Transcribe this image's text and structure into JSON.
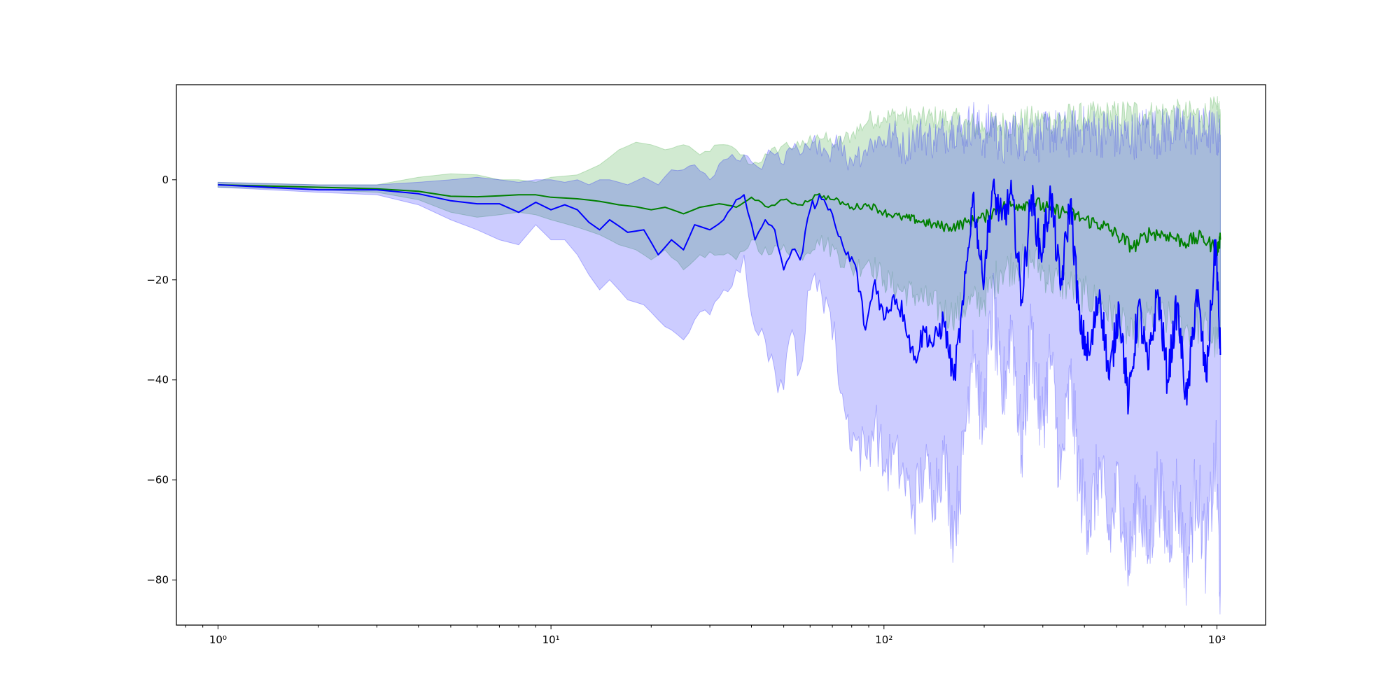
{
  "chart_data": {
    "type": "line",
    "title": "",
    "xlabel": "",
    "ylabel": "",
    "xscale": "log",
    "xlim": [
      0.75,
      1400
    ],
    "ylim": [
      -89,
      19
    ],
    "grid": false,
    "legend": "none",
    "xticks": [
      {
        "value": 1,
        "label": "10⁰"
      },
      {
        "value": 10,
        "label": "10¹"
      },
      {
        "value": 100,
        "label": "10²"
      },
      {
        "value": 1000,
        "label": "10³"
      }
    ],
    "yticks": [
      {
        "value": 0,
        "label": "0"
      },
      {
        "value": -20,
        "label": "−20"
      },
      {
        "value": -40,
        "label": "−40"
      },
      {
        "value": -60,
        "label": "−60"
      },
      {
        "value": -80,
        "label": "−80"
      }
    ],
    "series": [
      {
        "color": "#008000",
        "band_color": "#2ca02c",
        "band_opacity": 0.22,
        "x": [
          1,
          2,
          3,
          4,
          5,
          6,
          7,
          8,
          9,
          10,
          12,
          14,
          16,
          18,
          20,
          22,
          25,
          28,
          32,
          36,
          40,
          45,
          50,
          56,
          63,
          71,
          80,
          90,
          100,
          112,
          125,
          140,
          158,
          178,
          200,
          224,
          250,
          280,
          316,
          355,
          400,
          450,
          500,
          560,
          630,
          710,
          800,
          900,
          1000,
          1024
        ],
        "mean": [
          -1,
          -1.5,
          -1.8,
          -2.3,
          -3.3,
          -3.4,
          -3.2,
          -3.0,
          -3.0,
          -3.5,
          -3.8,
          -4.3,
          -5.0,
          -5.4,
          -6.0,
          -5.5,
          -6.8,
          -5.5,
          -4.8,
          -5.5,
          -3.5,
          -5.5,
          -4.0,
          -5.0,
          -3.0,
          -4.0,
          -5.5,
          -5.0,
          -6.5,
          -7.5,
          -8.0,
          -9.0,
          -9.5,
          -8.5,
          -7.5,
          -5.5,
          -5.0,
          -4.5,
          -6.0,
          -6.5,
          -8.0,
          -9.0,
          -11.0,
          -13.5,
          -10.5,
          -11.0,
          -12.5,
          -11.5,
          -14.0,
          -12.0
        ],
        "upper": [
          -0.5,
          -1.0,
          -1.0,
          0.5,
          1.2,
          1.0,
          0.0,
          0.0,
          -0.5,
          0.5,
          1.0,
          3.0,
          6.0,
          7.5,
          7.0,
          6.0,
          7.0,
          5.0,
          7.0,
          6.0,
          3.0,
          5.0,
          7.0,
          6.5,
          9.0,
          7.0,
          9.0,
          12.0,
          12.5,
          13.0,
          12.0,
          12.5,
          12.0,
          11.0,
          10.5,
          11.0,
          11.5,
          12.0,
          12.0,
          12.5,
          12.5,
          13.0,
          13.0,
          13.5,
          13.0,
          13.5,
          13.0,
          13.0,
          14.0,
          13.0
        ],
        "lower": [
          -1.5,
          -2.0,
          -2.5,
          -4.0,
          -6.5,
          -7.5,
          -7.0,
          -6.5,
          -7.0,
          -8.0,
          -9.5,
          -11.0,
          -13.0,
          -14.0,
          -16.0,
          -14.0,
          -18.0,
          -15.0,
          -15.0,
          -16.0,
          -12.0,
          -15.0,
          -13.0,
          -15.0,
          -12.0,
          -14.0,
          -18.0,
          -16.0,
          -20.0,
          -22.0,
          -23.0,
          -25.0,
          -27.0,
          -25.0,
          -24.0,
          -18.0,
          -17.0,
          -16.0,
          -20.0,
          -21.0,
          -23.0,
          -25.0,
          -28.0,
          -32.0,
          -27.0,
          -28.0,
          -30.0,
          -29.0,
          -33.0,
          -30.0
        ]
      },
      {
        "color": "#0000ff",
        "band_color": "#0000ff",
        "band_opacity": 0.2,
        "x": [
          1,
          2,
          3,
          4,
          5,
          6,
          7,
          8,
          9,
          10,
          11,
          12,
          13,
          14,
          15,
          17,
          19,
          21,
          23,
          25,
          27,
          30,
          33,
          36,
          38,
          41,
          44,
          47,
          50,
          53,
          56,
          60,
          64,
          68,
          72,
          77,
          82,
          88,
          94,
          100,
          107,
          115,
          123,
          132,
          141,
          151,
          162,
          173,
          185,
          198,
          212,
          226,
          242,
          259,
          277,
          296,
          317,
          339,
          363,
          388,
          415,
          444,
          475,
          508,
          543,
          581,
          621,
          664,
          710,
          759,
          812,
          868,
          928,
          992,
          1024
        ],
        "mean": [
          -1,
          -2,
          -2,
          -2.8,
          -4.2,
          -4.8,
          -4.8,
          -6.5,
          -4.5,
          -6,
          -5.0,
          -6,
          -8.5,
          -10,
          -8,
          -10.5,
          -10,
          -15,
          -12,
          -14,
          -9,
          -10,
          -8,
          -4,
          -3,
          -12,
          -8,
          -10,
          -18,
          -14,
          -16,
          -6,
          -3,
          -6,
          -10,
          -15,
          -17,
          -30,
          -20,
          -28,
          -23,
          -27,
          -36,
          -30,
          -33,
          -28,
          -40,
          -25,
          -3,
          -20,
          -2,
          -8,
          -3,
          -24,
          -3,
          -15,
          -3,
          -22,
          -4,
          -30,
          -35,
          -22,
          -40,
          -25,
          -45,
          -25,
          -38,
          -22,
          -40,
          -25,
          -45,
          -22,
          -40,
          -12,
          -35
        ],
        "upper": [
          -0.5,
          -1,
          -1,
          -0.5,
          0,
          0.5,
          0,
          -0.5,
          0,
          0,
          -0.5,
          0,
          -1,
          0,
          0,
          -1,
          0.5,
          -1,
          2,
          2,
          3,
          0,
          4,
          4,
          5,
          3,
          4,
          5,
          3,
          6,
          5,
          6,
          8,
          5,
          9,
          4,
          5,
          6,
          8,
          8,
          9,
          6,
          9,
          9,
          8,
          9,
          11,
          9,
          12,
          8,
          12,
          6,
          10,
          8,
          10,
          8,
          10,
          9,
          9,
          10,
          10,
          9,
          10,
          8,
          9,
          9,
          11,
          9,
          10,
          10,
          10,
          9,
          10,
          9,
          9
        ],
        "lower": [
          -1.5,
          -2.5,
          -3,
          -5,
          -8,
          -10,
          -12,
          -13,
          -9,
          -12,
          -12,
          -15,
          -19,
          -22,
          -20,
          -24,
          -25,
          -28,
          -30,
          -32,
          -28,
          -27,
          -22,
          -18,
          -15,
          -30,
          -32,
          -38,
          -42,
          -30,
          -38,
          -22,
          -20,
          -25,
          -35,
          -48,
          -52,
          -55,
          -48,
          -58,
          -55,
          -60,
          -65,
          -58,
          -62,
          -55,
          -70,
          -55,
          -30,
          -50,
          -25,
          -45,
          -28,
          -55,
          -30,
          -50,
          -35,
          -60,
          -40,
          -62,
          -68,
          -58,
          -72,
          -60,
          -78,
          -62,
          -75,
          -60,
          -72,
          -62,
          -78,
          -60,
          -75,
          -55,
          -82
        ]
      }
    ]
  }
}
